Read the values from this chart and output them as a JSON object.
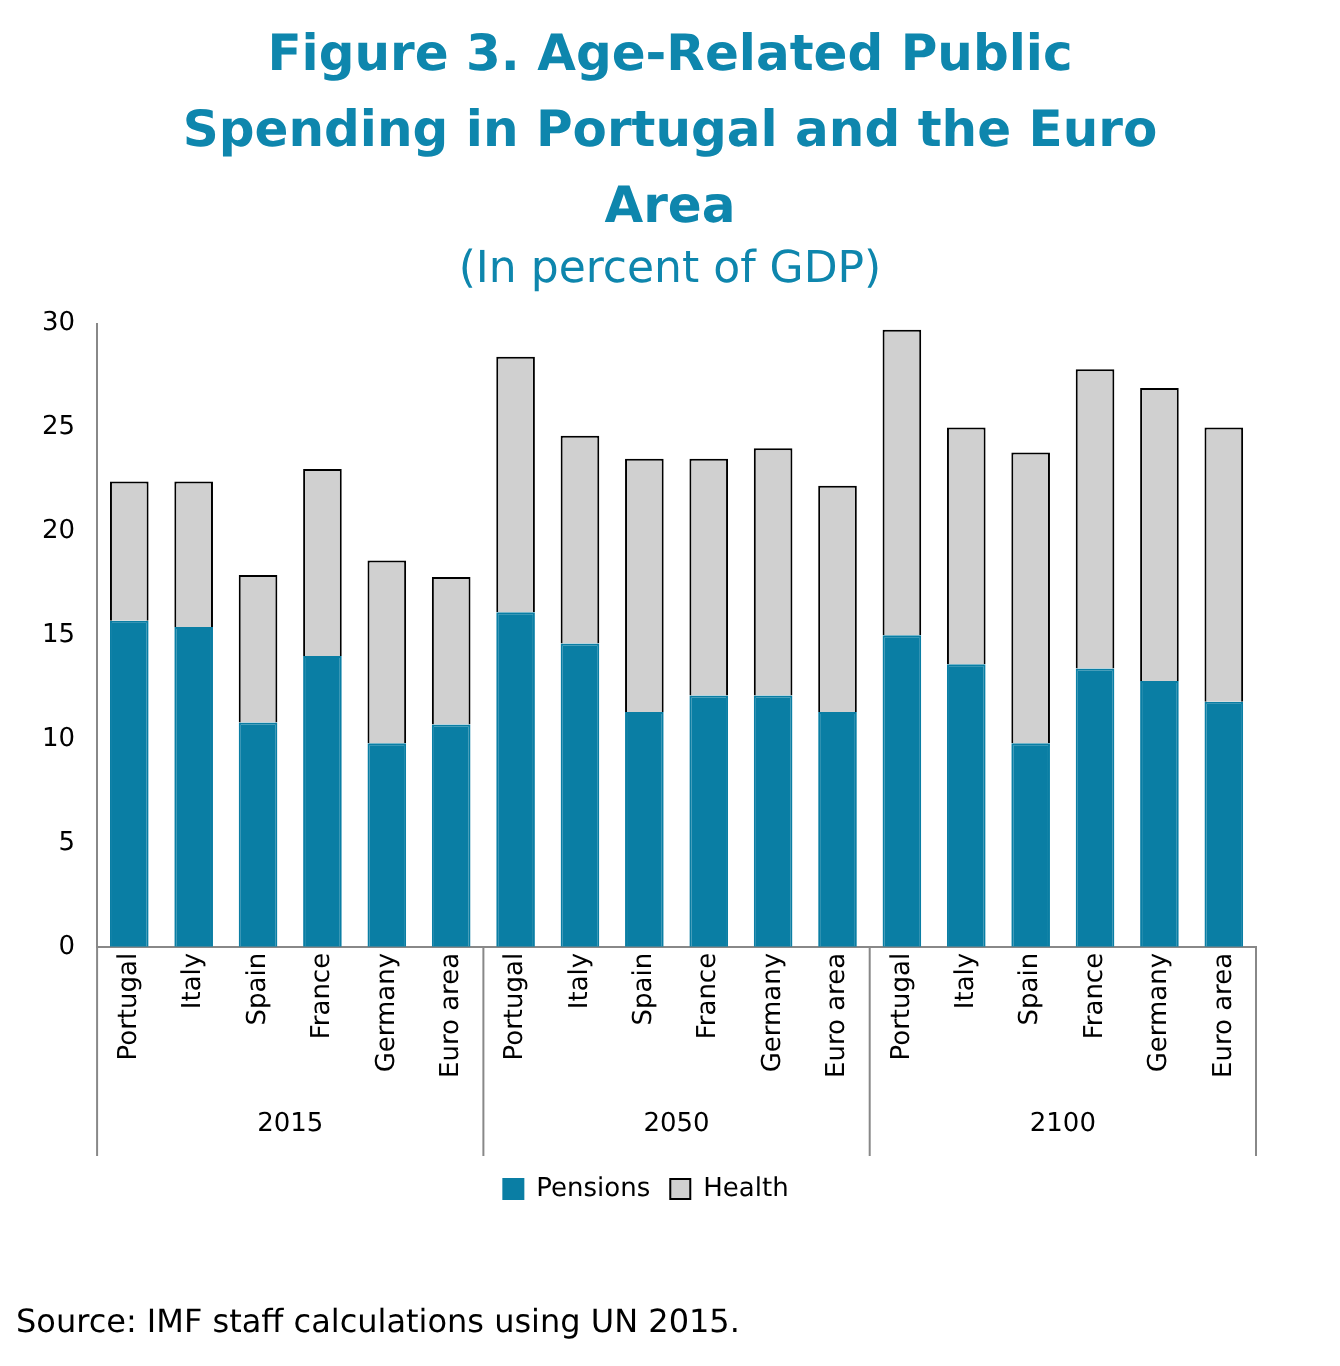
{
  "chart_data": {
    "type": "bar",
    "title": "Figure 3. Age-Related Public Spending in Portugal and the Euro Area",
    "subtitle": "(In percent of GDP)",
    "categories": [
      "Portugal",
      "Italy",
      "Spain",
      "France",
      "Germany",
      "Euro area",
      "Portugal",
      "Italy",
      "Spain",
      "France",
      "Germany",
      "Euro area",
      "Portugal",
      "Italy",
      "Spain",
      "France",
      "Germany",
      "Euro area"
    ],
    "stacked": true,
    "series": [
      {
        "name": "Pensions",
        "color": "#0a7ea4",
        "values": [
          15.7,
          15.4,
          10.8,
          14.0,
          9.8,
          10.7,
          16.1,
          14.6,
          11.3,
          12.1,
          12.1,
          11.3,
          15.0,
          13.6,
          9.8,
          13.4,
          12.8,
          11.8
        ]
      },
      {
        "name": "Health",
        "color": "#d0d0d0",
        "values": [
          6.7,
          7.0,
          7.1,
          9.0,
          8.8,
          7.1,
          12.3,
          10.0,
          12.2,
          11.4,
          11.9,
          10.9,
          14.7,
          11.4,
          14.0,
          14.4,
          14.1,
          13.2
        ]
      }
    ],
    "ylim": [
      0,
      30
    ],
    "yticks": [
      0,
      5,
      10,
      15,
      20,
      25,
      30
    ],
    "grid": false,
    "legend": "bottom",
    "annotations": [
      "2015",
      "2050",
      "2100",
      "Source: IMF staff calculations using UN 2015."
    ]
  }
}
